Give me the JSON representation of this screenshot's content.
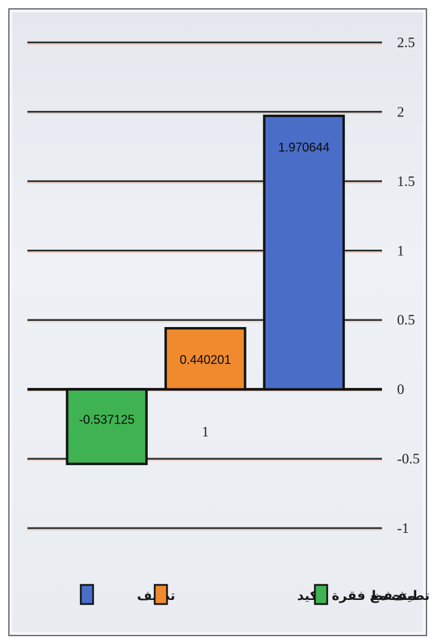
{
  "chart_data": {
    "type": "bar",
    "categories": [
      "1"
    ],
    "series": [
      {
        "name": "متحفظ",
        "color": "#3fb351",
        "values": [
          -0.537125
        ],
        "label": "-0.537125"
      },
      {
        "name": "تطيف مع فقرة تأكيد",
        "color": "#f08a2e",
        "values": [
          0.440201
        ],
        "label": "0.440201"
      },
      {
        "name": "تطيف",
        "color": "#4a6ec8",
        "values": [
          1.970644
        ],
        "label": "1.970644"
      }
    ],
    "ylim": [
      -1,
      2.5
    ],
    "yticks": [
      "2.5",
      "2",
      "1.5",
      "1",
      "0.5",
      "0",
      "-0.5",
      "-1"
    ],
    "ytick_values": [
      2.5,
      2,
      1.5,
      1,
      0.5,
      0,
      -0.5,
      -1
    ],
    "axis_side": "right",
    "grid": true,
    "legend_position": "bottom"
  }
}
